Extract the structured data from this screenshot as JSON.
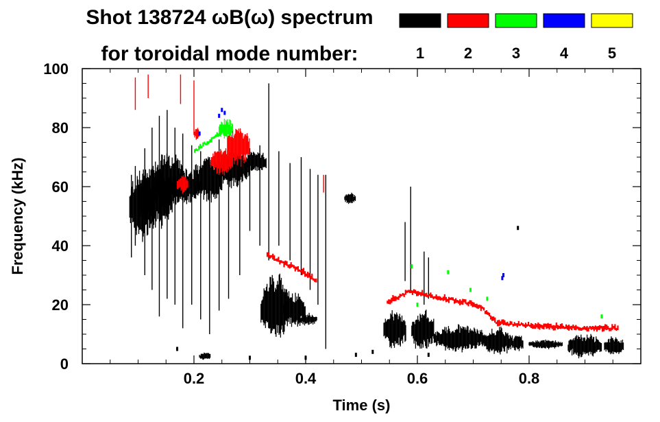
{
  "chart_data": {
    "type": "scatter",
    "title_line1": "Shot 138724 ωB(ω) spectrum",
    "title_line2": "for toroidal mode number:",
    "xlabel": "Time (s)",
    "ylabel": "Frequency (kHz)",
    "xlim": [
      0.0,
      1.0
    ],
    "ylim": [
      0,
      100
    ],
    "x_ticks": [
      0.2,
      0.4,
      0.6,
      0.8
    ],
    "x_tick_labels": [
      "0.2",
      "0.4",
      "0.6",
      "0.8"
    ],
    "y_ticks": [
      0,
      20,
      40,
      60,
      80,
      100
    ],
    "y_tick_labels": [
      "0",
      "20",
      "40",
      "60",
      "80",
      "100"
    ],
    "legend": [
      {
        "label": "1",
        "color": "#000000"
      },
      {
        "label": "2",
        "color": "#ff0000"
      },
      {
        "label": "3",
        "color": "#00ff00"
      },
      {
        "label": "4",
        "color": "#0000ff"
      },
      {
        "label": "5",
        "color": "#ffff00"
      }
    ],
    "series": [
      {
        "name": "n=1",
        "color": "#000000",
        "blobs": [
          {
            "t": [
              0.085,
              0.13
            ],
            "f": [
              42,
              65
            ]
          },
          {
            "t": [
              0.1,
              0.16
            ],
            "f": [
              45,
              68
            ]
          },
          {
            "t": [
              0.13,
              0.18
            ],
            "f": [
              50,
              72
            ]
          },
          {
            "t": [
              0.16,
              0.21
            ],
            "f": [
              54,
              66
            ]
          },
          {
            "t": [
              0.2,
              0.25
            ],
            "f": [
              55,
              70
            ]
          },
          {
            "t": [
              0.24,
              0.3
            ],
            "f": [
              60,
              72
            ]
          },
          {
            "t": [
              0.29,
              0.33
            ],
            "f": [
              65,
              72
            ]
          },
          {
            "t": [
              0.32,
              0.37
            ],
            "f": [
              8,
              30
            ]
          },
          {
            "t": [
              0.36,
              0.4
            ],
            "f": [
              12,
              24
            ]
          },
          {
            "t": [
              0.39,
              0.42
            ],
            "f": [
              13,
              17
            ]
          },
          {
            "t": [
              0.47,
              0.49
            ],
            "f": [
              54,
              58
            ]
          },
          {
            "t": [
              0.54,
              0.58
            ],
            "f": [
              5,
              18
            ]
          },
          {
            "t": [
              0.59,
              0.63
            ],
            "f": [
              4,
              18
            ]
          },
          {
            "t": [
              0.63,
              0.72
            ],
            "f": [
              4,
              13
            ]
          },
          {
            "t": [
              0.72,
              0.77
            ],
            "f": [
              3,
              12
            ]
          },
          {
            "t": [
              0.77,
              0.79
            ],
            "f": [
              4,
              10
            ]
          },
          {
            "t": [
              0.8,
              0.86
            ],
            "f": [
              5,
              8
            ]
          },
          {
            "t": [
              0.87,
              0.93
            ],
            "f": [
              2,
              10
            ]
          },
          {
            "t": [
              0.935,
              0.97
            ],
            "f": [
              3,
              9
            ]
          },
          {
            "t": [
              0.21,
              0.23
            ],
            "f": [
              1,
              4
            ]
          }
        ],
        "spikes": [
          {
            "t": 0.088,
            "f": [
              36,
              64
            ]
          },
          {
            "t": 0.095,
            "f": [
              40,
              67
            ]
          },
          {
            "t": 0.112,
            "f": [
              30,
              73
            ]
          },
          {
            "t": 0.125,
            "f": [
              25,
              80
            ]
          },
          {
            "t": 0.138,
            "f": [
              16,
              84
            ]
          },
          {
            "t": 0.152,
            "f": [
              22,
              86
            ]
          },
          {
            "t": 0.166,
            "f": [
              20,
              80
            ]
          },
          {
            "t": 0.18,
            "f": [
              12,
              78
            ]
          },
          {
            "t": 0.196,
            "f": [
              20,
              74
            ]
          },
          {
            "t": 0.212,
            "f": [
              15,
              72
            ]
          },
          {
            "t": 0.228,
            "f": [
              10,
              70
            ]
          },
          {
            "t": 0.245,
            "f": [
              18,
              76
            ]
          },
          {
            "t": 0.262,
            "f": [
              22,
              70
            ]
          },
          {
            "t": 0.282,
            "f": [
              30,
              72
            ]
          },
          {
            "t": 0.3,
            "f": [
              45,
              73
            ]
          },
          {
            "t": 0.318,
            "f": [
              40,
              74
            ]
          },
          {
            "t": 0.334,
            "f": [
              35,
              95
            ]
          },
          {
            "t": 0.352,
            "f": [
              40,
              72
            ]
          },
          {
            "t": 0.372,
            "f": [
              35,
              68
            ]
          },
          {
            "t": 0.392,
            "f": [
              30,
              70
            ]
          },
          {
            "t": 0.408,
            "f": [
              25,
              66
            ]
          },
          {
            "t": 0.422,
            "f": [
              20,
              64
            ]
          },
          {
            "t": 0.436,
            "f": [
              5,
              64
            ]
          },
          {
            "t": 0.578,
            "f": [
              28,
              48
            ]
          },
          {
            "t": 0.588,
            "f": [
              24,
              60
            ]
          },
          {
            "t": 0.612,
            "f": [
              20,
              38
            ]
          },
          {
            "t": 0.62,
            "f": [
              22,
              36
            ]
          }
        ],
        "dots": [
          [
            0.17,
            5
          ],
          [
            0.3,
            2
          ],
          [
            0.49,
            3
          ],
          [
            0.52,
            4
          ],
          [
            0.78,
            46
          ],
          [
            0.62,
            3
          ],
          [
            0.4,
            2
          ]
        ]
      },
      {
        "name": "n=2",
        "color": "#ff0000",
        "blobs": [
          {
            "t": [
              0.26,
              0.3
            ],
            "f": [
              67,
              80
            ]
          },
          {
            "t": [
              0.23,
              0.27
            ],
            "f": [
              64,
              73
            ]
          },
          {
            "t": [
              0.17,
              0.19
            ],
            "f": [
              58,
              64
            ]
          },
          {
            "t": [
              0.2,
              0.21
            ],
            "f": [
              76,
              80
            ]
          }
        ],
        "tracks": [
          {
            "points": [
              [
                0.33,
                37
              ],
              [
                0.36,
                34
              ],
              [
                0.385,
                32
              ],
              [
                0.405,
                30
              ],
              [
                0.42,
                28
              ]
            ],
            "width": 1.5
          },
          {
            "points": [
              [
                0.545,
                21
              ],
              [
                0.565,
                22.5
              ],
              [
                0.585,
                24.5
              ],
              [
                0.6,
                24
              ],
              [
                0.62,
                23
              ],
              [
                0.65,
                22
              ],
              [
                0.68,
                21
              ],
              [
                0.705,
                20
              ],
              [
                0.725,
                17
              ],
              [
                0.74,
                14
              ],
              [
                0.77,
                13.5
              ],
              [
                0.8,
                13
              ],
              [
                0.85,
                12.5
              ],
              [
                0.9,
                12
              ],
              [
                0.96,
                12
              ]
            ],
            "width": 1.5
          }
        ],
        "spikes": [
          {
            "t": 0.095,
            "f": [
              86,
              97
            ]
          },
          {
            "t": 0.118,
            "f": [
              90,
              98
            ]
          },
          {
            "t": 0.176,
            "f": [
              88,
              98
            ]
          },
          {
            "t": 0.2,
            "f": [
              78,
              96
            ]
          },
          {
            "t": 0.432,
            "f": [
              58,
              64
            ]
          }
        ]
      },
      {
        "name": "n=3",
        "color": "#00ff00",
        "blobs": [
          {
            "t": [
              0.245,
              0.27
            ],
            "f": [
              76,
              83
            ]
          }
        ],
        "tracks": [
          {
            "points": [
              [
                0.2,
                72
              ],
              [
                0.215,
                74
              ],
              [
                0.23,
                76
              ],
              [
                0.245,
                78
              ],
              [
                0.26,
                81
              ]
            ],
            "width": 1.2
          }
        ],
        "dots": [
          [
            0.59,
            33
          ],
          [
            0.655,
            31
          ],
          [
            0.695,
            25
          ],
          [
            0.725,
            22
          ],
          [
            0.93,
            16
          ],
          [
            0.6,
            20
          ]
        ]
      },
      {
        "name": "n=4",
        "color": "#0000ff",
        "dots": [
          [
            0.25,
            86
          ],
          [
            0.255,
            85
          ],
          [
            0.245,
            84
          ],
          [
            0.752,
            29
          ],
          [
            0.754,
            30
          ],
          [
            0.21,
            78
          ]
        ]
      },
      {
        "name": "n=5",
        "color": "#ffff00",
        "dots": []
      }
    ]
  }
}
